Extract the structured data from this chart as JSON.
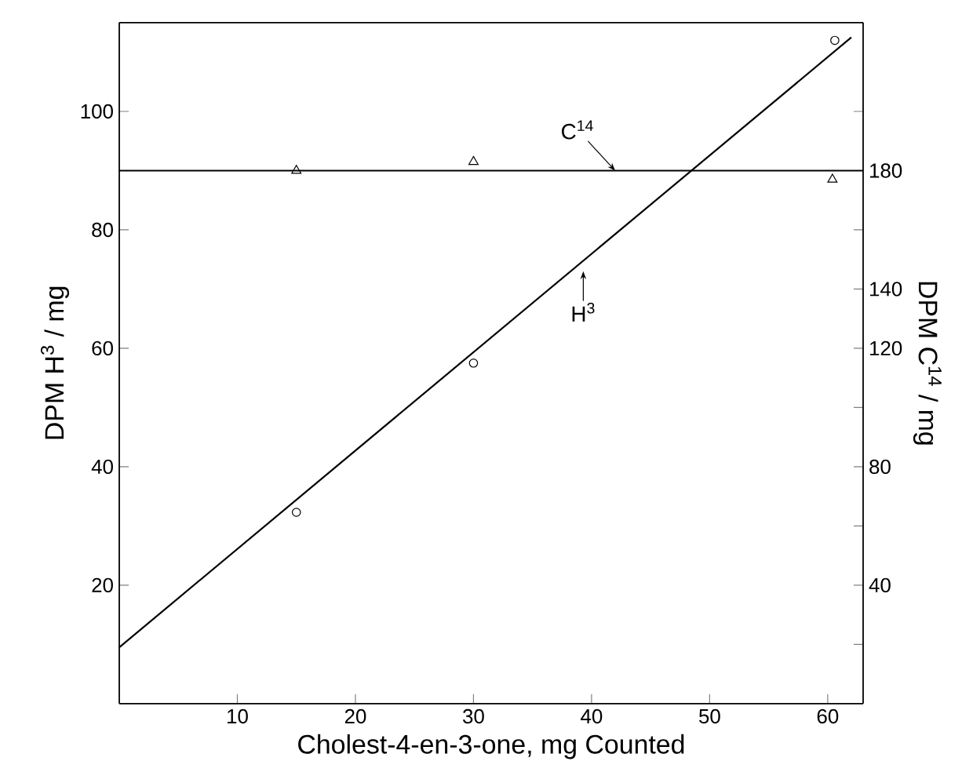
{
  "chart_data": {
    "type": "scatter",
    "xlabel": "Cholest-4-en-3-one, mg Counted",
    "ylabel": "DPM H$^{3}$ / mg",
    "y2label": "DPM C$^{14}$ / mg",
    "xlim": [
      0,
      63
    ],
    "xticks": [
      10,
      20,
      30,
      40,
      50,
      60
    ],
    "ylim": [
      0,
      115
    ],
    "yticks": [
      20,
      40,
      60,
      80,
      100
    ],
    "y2lim": [
      0,
      230
    ],
    "y2ticks": [
      {
        "value": 20,
        "label": null
      },
      40,
      {
        "value": 60,
        "label": null
      },
      80,
      {
        "value": 100,
        "label": null
      },
      120,
      140,
      {
        "value": 160,
        "label": null
      },
      180,
      {
        "value": 200,
        "label": null
      }
    ],
    "series": [
      {
        "marker": "circle",
        "color": "#000000",
        "x": [
          15,
          30,
          60.6
        ],
        "values": [
          32.3,
          57.5,
          112
        ]
      },
      {
        "type": "line",
        "marker": "none",
        "color": "#000000",
        "x": [
          0,
          62
        ],
        "values": [
          9.5,
          112.5
        ]
      },
      {
        "marker": "triangle",
        "axis": "y2",
        "color": "#000000",
        "x": [
          15,
          30,
          60.4
        ],
        "values": [
          180,
          183,
          177
        ]
      },
      {
        "type": "line",
        "marker": "none",
        "axis": "y2",
        "color": "#000000",
        "x": [
          0,
          63
        ],
        "values": [
          180,
          180
        ]
      }
    ],
    "annotations": [
      {
        "text": "C$^{14}$",
        "x": 42,
        "y": 90
      },
      {
        "text": "H$^{3}$",
        "x": 39.3,
        "y": 73
      }
    ]
  }
}
